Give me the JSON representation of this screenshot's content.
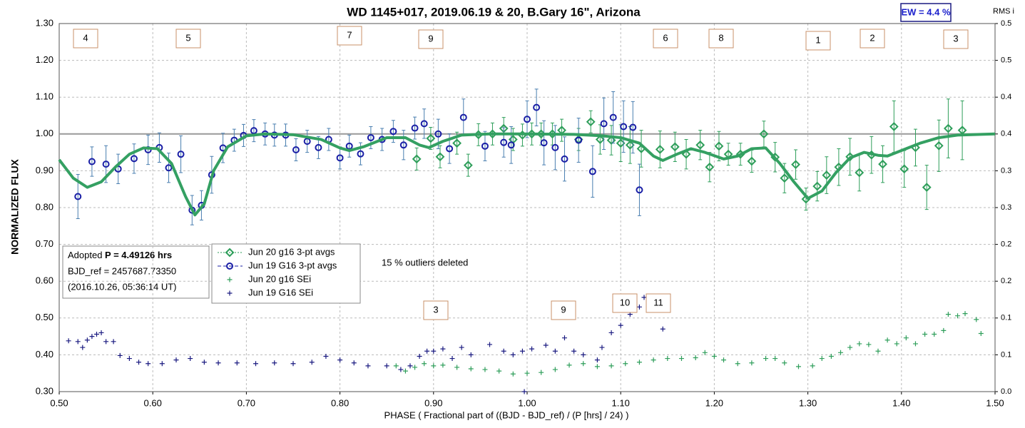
{
  "chart_data": {
    "type": "scatter",
    "title": "WD 1145+017, 2019.06.19 & 20, B.Gary 16\", Arizona",
    "xlabel": "PHASE ( Fractional part of ((BJD - BJD_ref) / (P [hrs] / 24) )",
    "ylabel": "NORMALIZED FLUX",
    "y2label": "RMS i",
    "xlim": [
      0.5,
      1.5
    ],
    "ylim": [
      0.3,
      1.3
    ],
    "y2lim": [
      0,
      0.5
    ],
    "xticks": [
      {
        "value": 0.5,
        "label": "0.50"
      },
      {
        "value": 0.6,
        "label": "0.60"
      },
      {
        "value": 0.7,
        "label": "0.70"
      },
      {
        "value": 0.8,
        "label": "0.80"
      },
      {
        "value": 0.9,
        "label": "0.90"
      },
      {
        "value": 1.0,
        "label": "1.00"
      },
      {
        "value": 1.1,
        "label": "1.10"
      },
      {
        "value": 1.2,
        "label": "1.20"
      },
      {
        "value": 1.3,
        "label": "1.30"
      },
      {
        "value": 1.4,
        "label": "1.40"
      },
      {
        "value": 1.5,
        "label": "1.50"
      }
    ],
    "yticks": [
      {
        "value": 0.3,
        "label": "0.30"
      },
      {
        "value": 0.4,
        "label": "0.40"
      },
      {
        "value": 0.5,
        "label": "0.50"
      },
      {
        "value": 0.6,
        "label": "0.60"
      },
      {
        "value": 0.7,
        "label": "0.70"
      },
      {
        "value": 0.8,
        "label": "0.80"
      },
      {
        "value": 0.9,
        "label": "0.90"
      },
      {
        "value": 1.0,
        "label": "1.00"
      },
      {
        "value": 1.1,
        "label": "1.10"
      },
      {
        "value": 1.2,
        "label": "1.20"
      },
      {
        "value": 1.3,
        "label": "1.30"
      }
    ],
    "y2ticks": [
      {
        "value": 0,
        "label": "0.0"
      },
      {
        "value": 0.05,
        "label": "0.1"
      },
      {
        "value": 0.1,
        "label": "0.1"
      },
      {
        "value": 0.15,
        "label": "0.2"
      },
      {
        "value": 0.2,
        "label": "0.2"
      },
      {
        "value": 0.25,
        "label": "0.3"
      },
      {
        "value": 0.3,
        "label": "0.3"
      },
      {
        "value": 0.35,
        "label": "0.4"
      },
      {
        "value": 0.4,
        "label": "0.4"
      },
      {
        "value": 0.45,
        "label": "0.5"
      },
      {
        "value": 0.5,
        "label": "0.5"
      }
    ],
    "grid": true,
    "hline": 1.0,
    "series": [
      {
        "name": "Jun 20 g16 3-pt avgs",
        "color": "#2e9e5a",
        "marker": "diamond",
        "x": [
          0.882,
          0.897,
          0.907,
          0.925,
          0.937,
          0.948,
          0.963,
          0.975,
          0.985,
          0.995,
          1.005,
          1.015,
          1.027,
          1.037,
          1.055,
          1.068,
          1.078,
          1.09,
          1.1,
          1.11,
          1.122,
          1.142,
          1.158,
          1.17,
          1.185,
          1.195,
          1.205,
          1.215,
          1.228,
          1.24,
          1.253,
          1.265,
          1.275,
          1.287,
          1.298,
          1.31,
          1.32,
          1.333,
          1.345,
          1.355,
          1.368,
          1.38,
          1.392,
          1.403,
          1.415,
          1.427,
          1.44,
          1.45,
          1.465
        ],
        "values": [
          0.932,
          0.988,
          0.938,
          0.975,
          0.915,
          0.998,
          1.0,
          1.015,
          0.985,
          0.997,
          1.0,
          1.0,
          1.0,
          1.01,
          0.985,
          1.033,
          0.985,
          0.983,
          0.975,
          0.97,
          0.96,
          0.958,
          0.965,
          0.945,
          0.97,
          0.91,
          0.967,
          0.945,
          0.945,
          0.926,
          1.0,
          0.937,
          0.88,
          0.917,
          0.823,
          0.858,
          0.888,
          0.91,
          0.938,
          0.895,
          0.943,
          0.918,
          1.02,
          0.905,
          0.963,
          0.855,
          0.968,
          1.015,
          1.01
        ],
        "errors": [
          0.03,
          0.03,
          0.03,
          0.03,
          0.03,
          0.03,
          0.03,
          0.03,
          0.03,
          0.03,
          0.03,
          0.03,
          0.03,
          0.03,
          0.03,
          0.03,
          0.04,
          0.04,
          0.05,
          0.05,
          0.05,
          0.05,
          0.04,
          0.04,
          0.04,
          0.04,
          0.04,
          0.03,
          0.03,
          0.03,
          0.035,
          0.04,
          0.04,
          0.04,
          0.03,
          0.04,
          0.05,
          0.05,
          0.05,
          0.05,
          0.05,
          0.05,
          0.07,
          0.05,
          0.05,
          0.06,
          0.07,
          0.08,
          0.08
        ]
      },
      {
        "name": "Jun 19 G16 3-pt avgs",
        "color": "#1a1fa6",
        "marker": "circle",
        "x": [
          0.52,
          0.535,
          0.55,
          0.563,
          0.58,
          0.595,
          0.607,
          0.617,
          0.63,
          0.642,
          0.652,
          0.663,
          0.675,
          0.687,
          0.697,
          0.708,
          0.72,
          0.73,
          0.742,
          0.753,
          0.765,
          0.777,
          0.788,
          0.8,
          0.81,
          0.822,
          0.833,
          0.845,
          0.857,
          0.868,
          0.88,
          0.89,
          0.905,
          0.917,
          0.932,
          0.955,
          0.975,
          0.983,
          1.0,
          1.01,
          1.018,
          1.03,
          1.04,
          1.055,
          1.07,
          1.082,
          1.092,
          1.103,
          1.113,
          1.12
        ],
        "values": [
          0.83,
          0.925,
          0.918,
          0.905,
          0.933,
          0.957,
          0.963,
          0.908,
          0.945,
          0.793,
          0.806,
          0.889,
          0.962,
          0.983,
          0.996,
          1.009,
          1.0,
          0.997,
          0.997,
          0.957,
          0.98,
          0.963,
          0.985,
          0.935,
          0.967,
          0.946,
          0.99,
          0.985,
          1.007,
          0.97,
          1.016,
          1.028,
          1.0,
          0.96,
          1.045,
          0.967,
          0.977,
          0.97,
          1.04,
          1.072,
          0.976,
          0.963,
          0.932,
          0.983,
          0.898,
          1.028,
          1.045,
          1.02,
          1.018,
          0.848
        ],
        "errors": [
          0.06,
          0.04,
          0.05,
          0.04,
          0.04,
          0.04,
          0.04,
          0.04,
          0.05,
          0.04,
          0.04,
          0.05,
          0.04,
          0.03,
          0.03,
          0.03,
          0.03,
          0.03,
          0.03,
          0.03,
          0.03,
          0.03,
          0.03,
          0.03,
          0.03,
          0.03,
          0.03,
          0.03,
          0.03,
          0.04,
          0.03,
          0.04,
          0.04,
          0.04,
          0.05,
          0.04,
          0.04,
          0.05,
          0.05,
          0.05,
          0.06,
          0.06,
          0.06,
          0.06,
          0.07,
          0.07,
          0.07,
          0.07,
          0.07,
          0.07
        ]
      },
      {
        "name": "Jun 20 g16 SEi",
        "color": "#2e9e5a",
        "marker": "plus",
        "axis": "y2",
        "x": [
          0.86,
          0.87,
          0.88,
          0.89,
          0.9,
          0.91,
          0.925,
          0.94,
          0.955,
          0.97,
          0.985,
          1.0,
          1.015,
          1.03,
          1.045,
          1.06,
          1.075,
          1.09,
          1.105,
          1.12,
          1.135,
          1.15,
          1.165,
          1.18,
          1.19,
          1.2,
          1.21,
          1.225,
          1.24,
          1.255,
          1.265,
          1.275,
          1.29,
          1.305,
          1.315,
          1.325,
          1.335,
          1.345,
          1.355,
          1.365,
          1.375,
          1.385,
          1.395,
          1.405,
          1.415,
          1.425,
          1.435,
          1.445,
          1.45,
          1.46,
          1.468,
          1.48,
          1.485
        ],
        "values": [
          0.035,
          0.028,
          0.033,
          0.038,
          0.035,
          0.036,
          0.033,
          0.031,
          0.03,
          0.028,
          0.024,
          0.025,
          0.026,
          0.03,
          0.036,
          0.038,
          0.034,
          0.035,
          0.038,
          0.04,
          0.043,
          0.045,
          0.045,
          0.046,
          0.053,
          0.048,
          0.043,
          0.038,
          0.039,
          0.045,
          0.045,
          0.039,
          0.034,
          0.035,
          0.045,
          0.048,
          0.053,
          0.06,
          0.065,
          0.064,
          0.055,
          0.07,
          0.065,
          0.073,
          0.065,
          0.078,
          0.078,
          0.083,
          0.105,
          0.103,
          0.106,
          0.098,
          0.079
        ]
      },
      {
        "name": "Jun 19 G16 SEi",
        "color": "#1a1a80",
        "marker": "plus",
        "axis": "y2",
        "x": [
          0.51,
          0.52,
          0.525,
          0.53,
          0.535,
          0.54,
          0.545,
          0.55,
          0.558,
          0.565,
          0.575,
          0.585,
          0.595,
          0.61,
          0.625,
          0.64,
          0.655,
          0.67,
          0.69,
          0.71,
          0.73,
          0.75,
          0.77,
          0.785,
          0.8,
          0.815,
          0.83,
          0.85,
          0.865,
          0.875,
          0.885,
          0.893,
          0.9,
          0.91,
          0.92,
          0.93,
          0.94,
          0.96,
          0.975,
          0.985,
          0.995,
          1.005,
          1.02,
          1.03,
          1.04,
          1.05,
          1.06,
          1.075,
          1.08,
          1.09,
          1.1,
          1.11,
          1.12,
          1.125,
          1.13,
          1.145,
          0.997
        ],
        "values": [
          0.069,
          0.068,
          0.06,
          0.07,
          0.075,
          0.078,
          0.08,
          0.068,
          0.068,
          0.049,
          0.045,
          0.04,
          0.038,
          0.038,
          0.043,
          0.045,
          0.04,
          0.039,
          0.039,
          0.038,
          0.039,
          0.038,
          0.04,
          0.048,
          0.043,
          0.039,
          0.035,
          0.035,
          0.03,
          0.035,
          0.048,
          0.055,
          0.055,
          0.058,
          0.045,
          0.06,
          0.05,
          0.064,
          0.055,
          0.05,
          0.055,
          0.058,
          0.063,
          0.055,
          0.073,
          0.055,
          0.05,
          0.043,
          0.06,
          0.08,
          0.09,
          0.105,
          0.115,
          0.128,
          0.113,
          0.085,
          0.0
        ]
      },
      {
        "color": "#34a062",
        "marker": "line",
        "x": [
          0.5,
          0.515,
          0.53,
          0.545,
          0.56,
          0.575,
          0.59,
          0.605,
          0.62,
          0.635,
          0.645,
          0.655,
          0.665,
          0.68,
          0.7,
          0.72,
          0.75,
          0.78,
          0.8,
          0.81,
          0.825,
          0.85,
          0.87,
          0.885,
          0.895,
          0.91,
          0.93,
          0.96,
          1.0,
          1.05,
          1.08,
          1.1,
          1.12,
          1.135,
          1.145,
          1.16,
          1.175,
          1.19,
          1.21,
          1.225,
          1.24,
          1.255,
          1.27,
          1.285,
          1.3,
          1.315,
          1.33,
          1.345,
          1.36,
          1.375,
          1.385,
          1.4,
          1.42,
          1.44,
          1.46,
          1.5
        ],
        "values": [
          0.93,
          0.88,
          0.855,
          0.87,
          0.91,
          0.945,
          0.962,
          0.96,
          0.92,
          0.83,
          0.78,
          0.81,
          0.9,
          0.965,
          0.995,
          1.0,
          0.998,
          0.985,
          0.962,
          0.955,
          0.965,
          0.99,
          0.99,
          0.97,
          0.963,
          0.98,
          0.997,
          1.0,
          1.0,
          0.999,
          0.995,
          0.99,
          0.975,
          0.94,
          0.928,
          0.945,
          0.96,
          0.95,
          0.932,
          0.94,
          0.96,
          0.962,
          0.92,
          0.87,
          0.825,
          0.845,
          0.895,
          0.935,
          0.95,
          0.942,
          0.94,
          0.955,
          0.975,
          0.99,
          0.997,
          1.0
        ]
      }
    ],
    "dip_labels": [
      "4",
      "5",
      "7",
      "9",
      "6",
      "8",
      "1",
      "2",
      "3"
    ],
    "rms_labels": [
      "3",
      "9",
      "10",
      "11"
    ],
    "info": [
      "Adopted ",
      "P = 4.49126 hrs",
      "BJD_ref = 2457687.73350",
      "(2016.10.26, 05:36:14 UT)"
    ],
    "note": "15 % outliers deleted",
    "ew": "EW = 4.4 %"
  }
}
